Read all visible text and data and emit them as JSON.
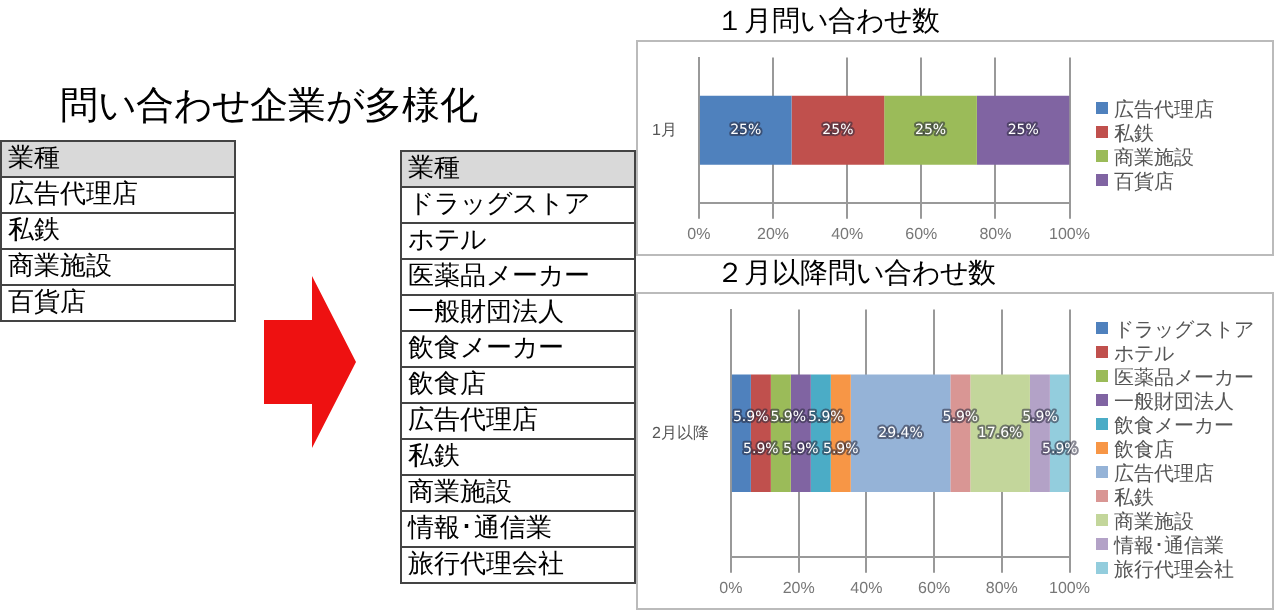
{
  "chart_data": [
    {
      "type": "other",
      "title": "問い合わせ企業が多様化",
      "annotations": [
        "業種",
        "広告代理店",
        "私鉄",
        "商業施設",
        "百貨店"
      ]
    },
    {
      "type": "other",
      "annotations": [
        "業種",
        "ドラッグストア",
        "ホテル",
        "医薬品メーカー",
        "一般財団法人",
        "飲食メーカー",
        "飲食店",
        "広告代理店",
        "私鉄",
        "商業施設",
        "情報･通信業",
        "旅行代理会社"
      ]
    },
    {
      "type": "bar",
      "title": "１月問い合わせ数",
      "orientation": "horizontal",
      "stacked": true,
      "categories": [
        "1月"
      ],
      "xlim": [
        0,
        100
      ],
      "xticks": [
        {
          "value": 0,
          "label": "0%"
        },
        {
          "value": 20,
          "label": "20%"
        },
        {
          "value": 40,
          "label": "40%"
        },
        {
          "value": 60,
          "label": "60%"
        },
        {
          "value": 80,
          "label": "80%"
        },
        {
          "value": 100,
          "label": "100%"
        }
      ],
      "grid": "x",
      "legend": "right",
      "series": [
        {
          "name": "広告代理店",
          "color": "#4f81bd",
          "values": [
            25
          ],
          "value_labels": [
            "25%"
          ]
        },
        {
          "name": "私鉄",
          "color": "#c0504d",
          "values": [
            25
          ],
          "value_labels": [
            "25%"
          ]
        },
        {
          "name": "商業施設",
          "color": "#9bbb59",
          "values": [
            25
          ],
          "value_labels": [
            "25%"
          ]
        },
        {
          "name": "百貨店",
          "color": "#8064a2",
          "values": [
            25
          ],
          "value_labels": [
            "25%"
          ]
        }
      ]
    },
    {
      "type": "bar",
      "title": "２月以降問い合わせ数",
      "orientation": "horizontal",
      "stacked": true,
      "categories": [
        "2月以降"
      ],
      "xlim": [
        0,
        100
      ],
      "xticks": [
        {
          "value": 0,
          "label": "0%"
        },
        {
          "value": 20,
          "label": "20%"
        },
        {
          "value": 40,
          "label": "40%"
        },
        {
          "value": 60,
          "label": "60%"
        },
        {
          "value": 80,
          "label": "80%"
        },
        {
          "value": 100,
          "label": "100%"
        }
      ],
      "grid": "x",
      "legend": "right",
      "series": [
        {
          "name": "ドラッグストア",
          "color": "#4f81bd",
          "values": [
            5.9
          ],
          "value_labels": [
            "5.9%"
          ]
        },
        {
          "name": "ホテル",
          "color": "#c0504d",
          "values": [
            5.9
          ],
          "value_labels": [
            "5.9%"
          ]
        },
        {
          "name": "医薬品メーカー",
          "color": "#9bbb59",
          "values": [
            5.9
          ],
          "value_labels": [
            "5.9%"
          ]
        },
        {
          "name": "一般財団法人",
          "color": "#8064a2",
          "values": [
            5.9
          ],
          "value_labels": [
            "5.9%"
          ]
        },
        {
          "name": "飲食メーカー",
          "color": "#4bacc6",
          "values": [
            5.9
          ],
          "value_labels": [
            "5.9%"
          ]
        },
        {
          "name": "飲食店",
          "color": "#f79646",
          "values": [
            5.9
          ],
          "value_labels": [
            "5.9%"
          ]
        },
        {
          "name": "広告代理店",
          "color": "#95b3d7",
          "values": [
            29.4
          ],
          "value_labels": [
            "29.4%"
          ]
        },
        {
          "name": "私鉄",
          "color": "#d99694",
          "values": [
            5.9
          ],
          "value_labels": [
            "5.9%"
          ]
        },
        {
          "name": "商業施設",
          "color": "#c3d69b",
          "values": [
            17.6
          ],
          "value_labels": [
            "17.6%"
          ]
        },
        {
          "name": "情報･通信業",
          "color": "#b3a2c7",
          "values": [
            5.9
          ],
          "value_labels": [
            "5.9%"
          ]
        },
        {
          "name": "旅行代理会社",
          "color": "#93cddd",
          "values": [
            5.9
          ],
          "value_labels": [
            "5.9%"
          ]
        }
      ]
    }
  ]
}
